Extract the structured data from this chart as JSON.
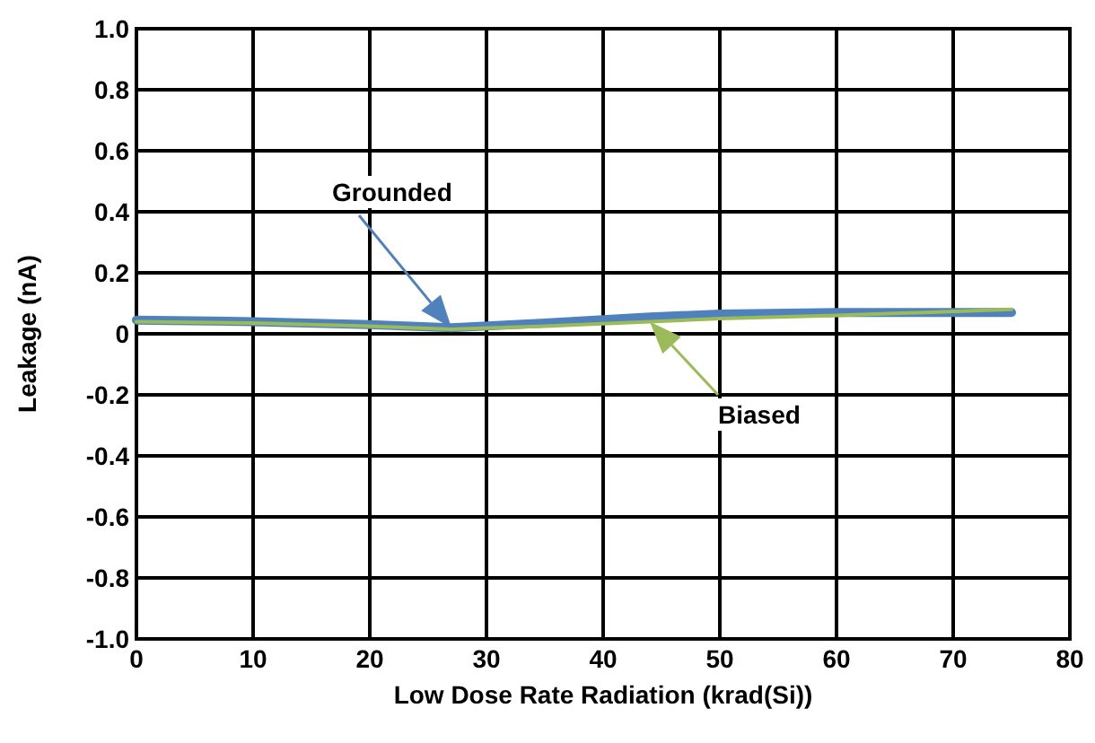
{
  "chart_data": {
    "type": "line",
    "xlabel": "Low Dose Rate Radiation (krad(Si))",
    "ylabel": "Leakage (nA)",
    "xlim": [
      0,
      80
    ],
    "xticks": [
      0,
      10,
      20,
      30,
      40,
      50,
      60,
      70,
      80
    ],
    "ylim": [
      -1,
      1
    ],
    "yticks": [
      {
        "value": -1,
        "label": "-1.0"
      },
      {
        "value": -0.8,
        "label": "-0.8"
      },
      {
        "value": -0.6,
        "label": "-0.6"
      },
      {
        "value": -0.4,
        "label": "-0.4"
      },
      {
        "value": -0.2,
        "label": "-0.2"
      },
      0,
      {
        "value": 0.2,
        "label": "0.2"
      },
      {
        "value": 0.4,
        "label": "0.4"
      },
      {
        "value": 0.6,
        "label": "0.6"
      },
      {
        "value": 0.8,
        "label": "0.8"
      },
      {
        "value": 1,
        "label": "1.0"
      }
    ],
    "grid": true,
    "marker": "none",
    "line_style": "solid",
    "series": [
      {
        "name": "Biased",
        "color": "#9bbb59",
        "x": [
          0,
          10,
          20,
          27,
          35,
          44,
          50,
          60,
          75
        ],
        "values": [
          0.04,
          0.035,
          0.025,
          0.015,
          0.025,
          0.04,
          0.05,
          0.06,
          0.08
        ]
      },
      {
        "name": "Grounded",
        "color": "#4f81bd",
        "x": [
          0,
          10,
          20,
          27,
          35,
          44,
          50,
          60,
          75
        ],
        "values": [
          0.045,
          0.04,
          0.03,
          0.02,
          0.035,
          0.055,
          0.065,
          0.07,
          0.07
        ]
      }
    ]
  }
}
